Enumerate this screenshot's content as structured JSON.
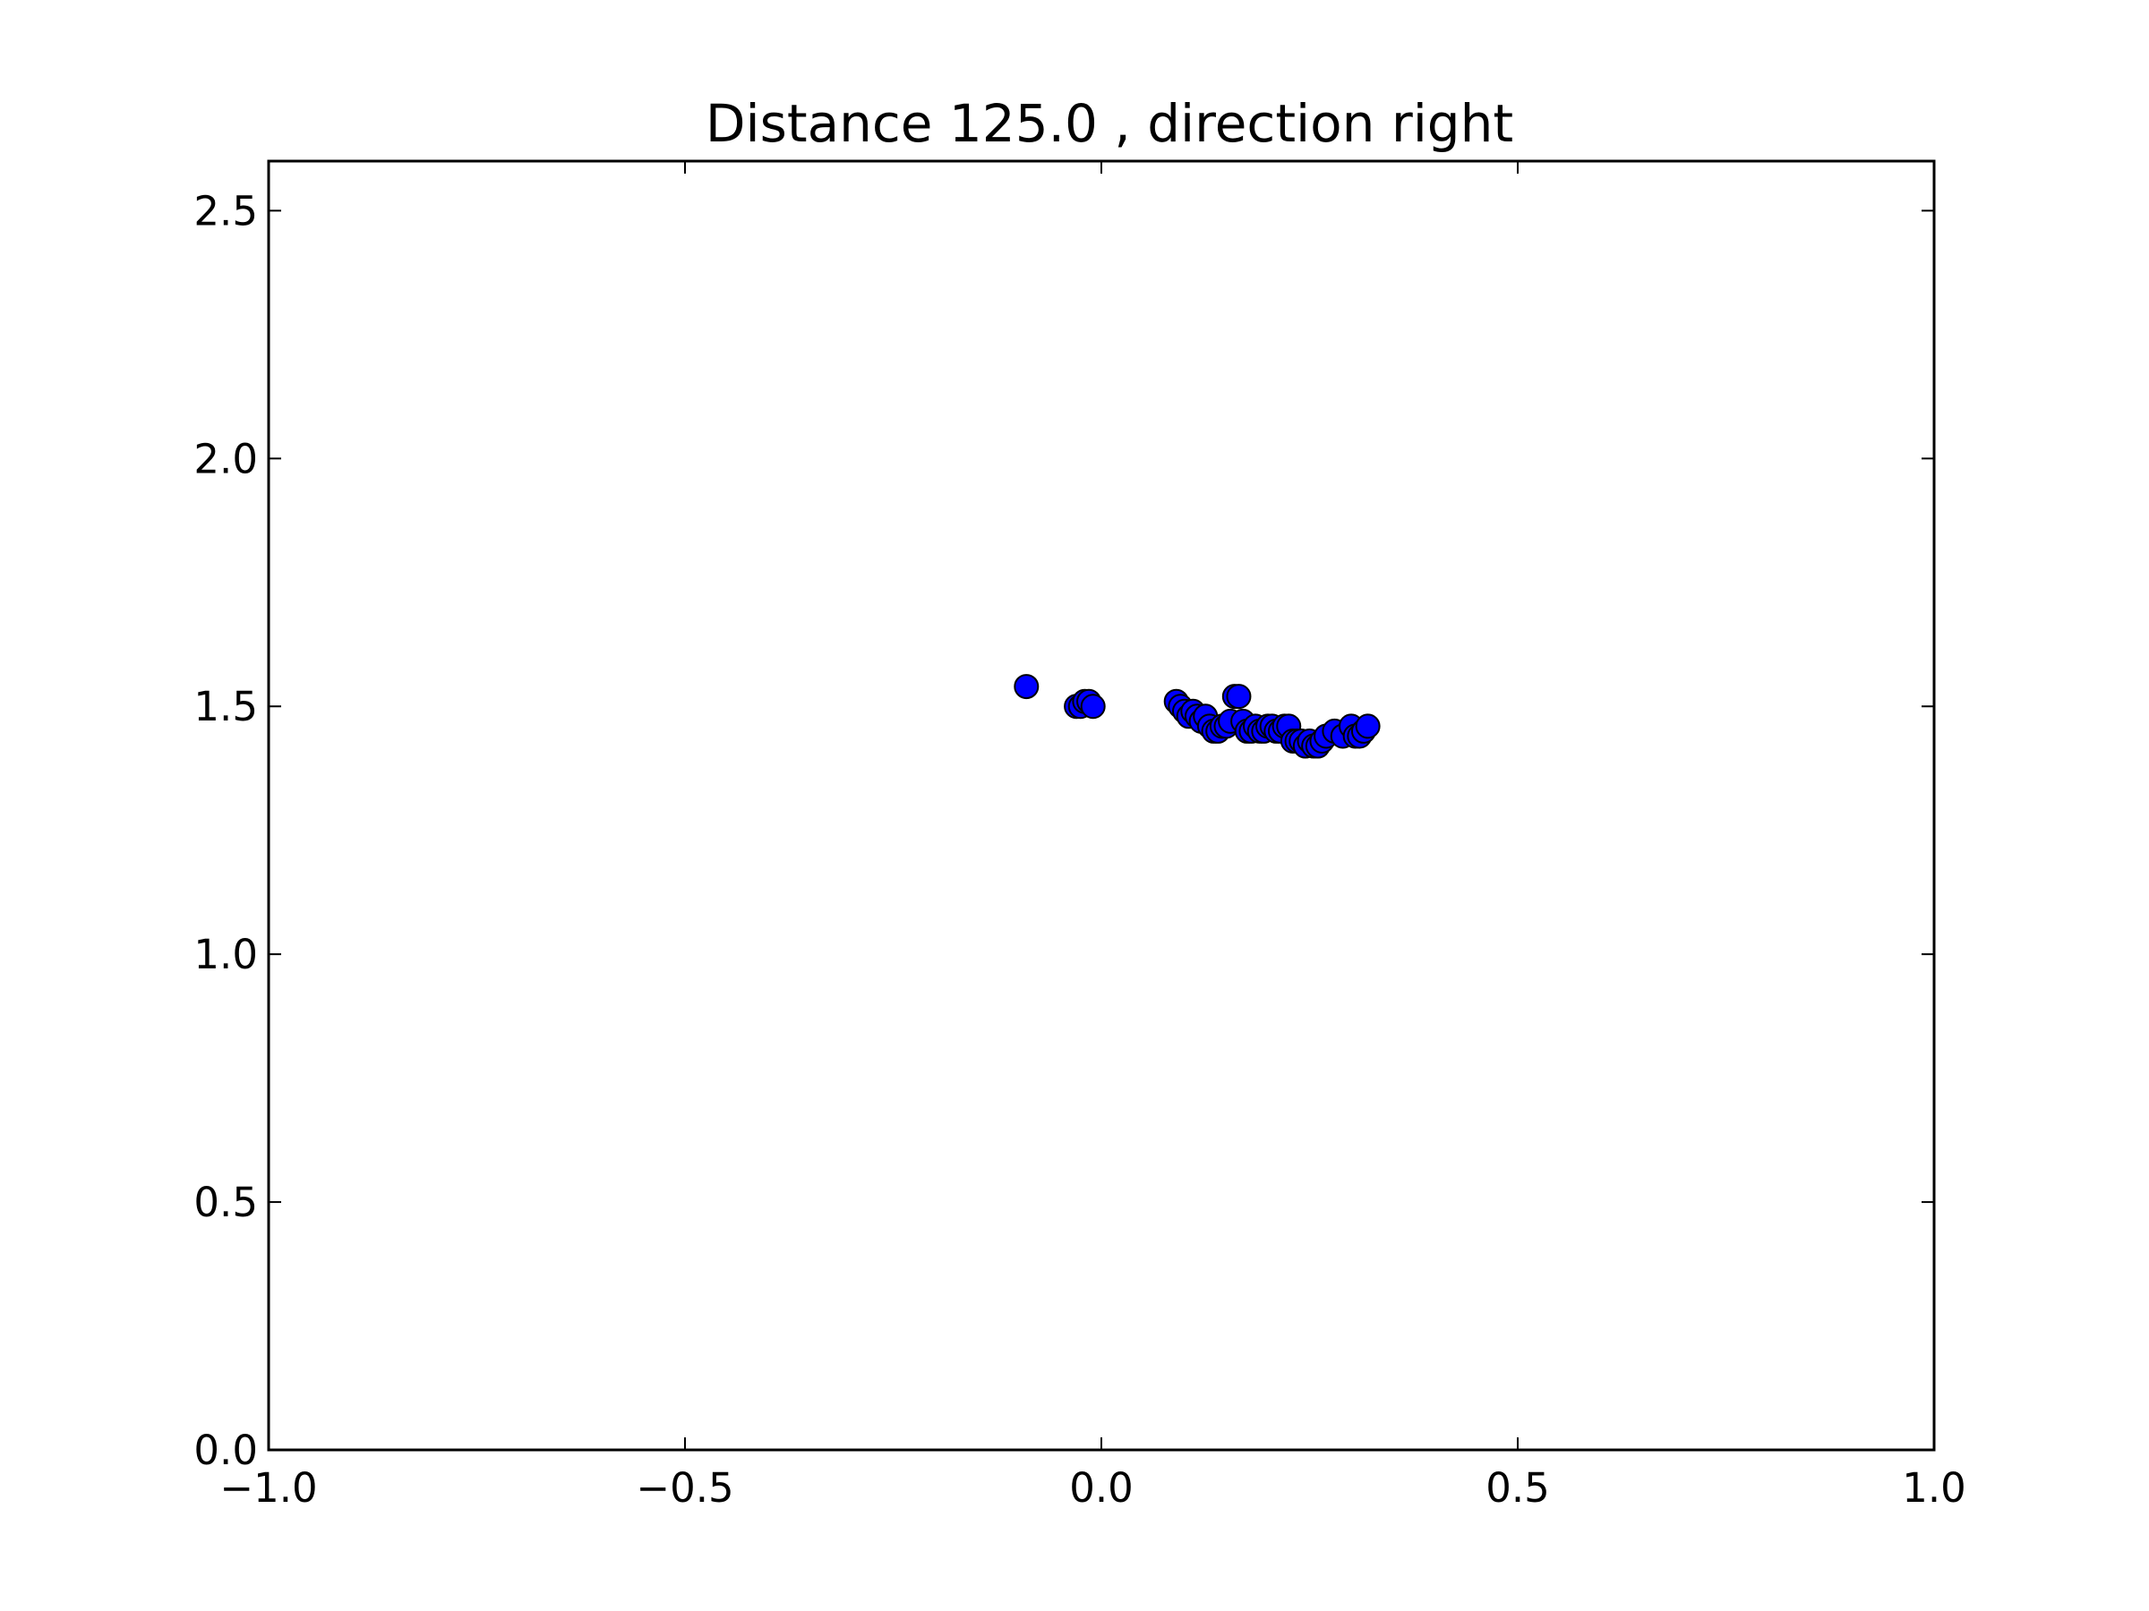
{
  "chart_data": {
    "type": "scatter",
    "title": "Distance 125.0 , direction right",
    "xlabel": "",
    "ylabel": "",
    "xlim": [
      -1.0,
      1.0
    ],
    "ylim": [
      0.0,
      2.6
    ],
    "xticks": [
      "−1.0",
      "−0.5",
      "0.0",
      "0.5",
      "1.0"
    ],
    "xtick_values": [
      -1.0,
      -0.5,
      0.0,
      0.5,
      1.0
    ],
    "yticks": [
      "0.0",
      "0.5",
      "1.0",
      "1.5",
      "2.0",
      "2.5"
    ],
    "ytick_values": [
      0.0,
      0.5,
      1.0,
      1.5,
      2.0,
      2.5
    ],
    "grid": false,
    "marker_color": "#0000ff",
    "edge_color": "#000000",
    "series": [
      {
        "x": [
          -0.09,
          -0.03,
          -0.025,
          -0.02,
          -0.015,
          -0.01,
          0.09,
          0.095,
          0.1,
          0.105,
          0.11,
          0.115,
          0.12,
          0.125,
          0.13,
          0.135,
          0.14,
          0.145,
          0.15,
          0.155,
          0.16,
          0.165,
          0.17,
          0.175,
          0.18,
          0.185,
          0.19,
          0.195,
          0.2,
          0.205,
          0.21,
          0.215,
          0.22,
          0.225,
          0.23,
          0.235,
          0.24,
          0.245,
          0.25,
          0.255,
          0.26,
          0.265,
          0.27,
          0.28,
          0.29,
          0.3,
          0.305,
          0.31,
          0.315,
          0.32
        ],
        "y": [
          1.54,
          1.5,
          1.5,
          1.51,
          1.51,
          1.5,
          1.51,
          1.5,
          1.49,
          1.48,
          1.49,
          1.48,
          1.47,
          1.48,
          1.46,
          1.45,
          1.45,
          1.46,
          1.46,
          1.47,
          1.52,
          1.52,
          1.47,
          1.45,
          1.45,
          1.46,
          1.45,
          1.45,
          1.46,
          1.46,
          1.45,
          1.45,
          1.46,
          1.46,
          1.43,
          1.43,
          1.43,
          1.42,
          1.43,
          1.42,
          1.42,
          1.43,
          1.44,
          1.45,
          1.44,
          1.46,
          1.44,
          1.44,
          1.45,
          1.46
        ]
      }
    ]
  }
}
